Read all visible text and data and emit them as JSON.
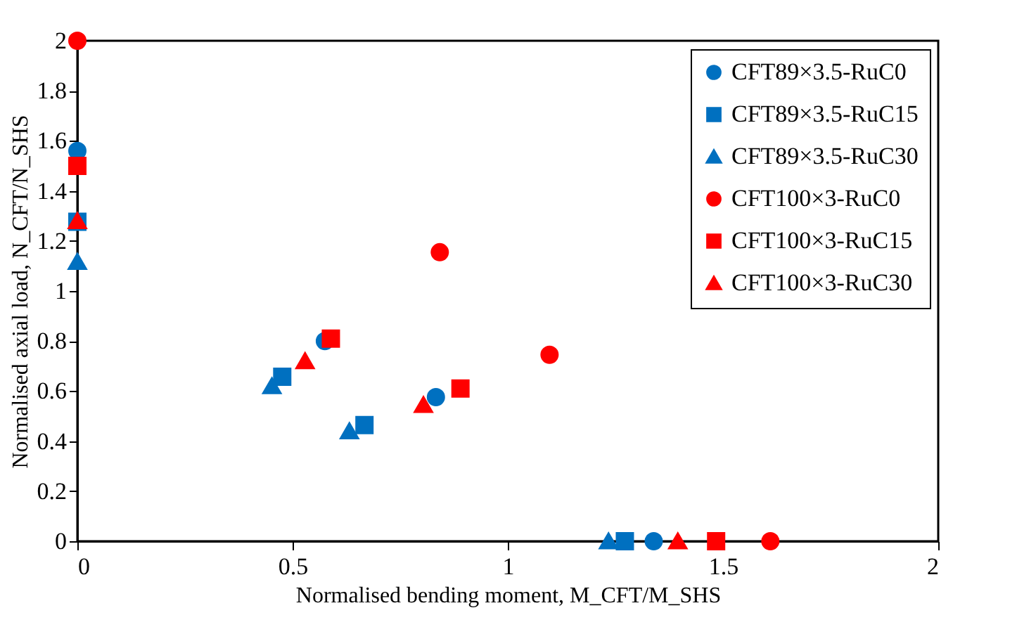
{
  "chart_data": {
    "type": "scatter",
    "xlabel": "Normalised bending moment, M_CFT/M_SHS",
    "ylabel": "Normalised axial load, N_CFT/N_SHS",
    "series": [
      {
        "name": "CFT89×3.5-RuC0",
        "color": "#0070c0",
        "marker": "circle",
        "x": [
          0,
          0.575,
          0.833,
          1.339
        ],
        "values": [
          1.56,
          0.8,
          0.576,
          0
        ]
      },
      {
        "name": "CFT89×3.5-RuC15",
        "color": "#0070c0",
        "marker": "square",
        "x": [
          0,
          0.476,
          0.667,
          1.272
        ],
        "values": [
          1.277,
          0.657,
          0.464,
          0
        ]
      },
      {
        "name": "CFT89×3.5-RuC30",
        "color": "#0070c0",
        "marker": "triangle",
        "x": [
          0,
          0.452,
          0.632,
          1.234
        ],
        "values": [
          1.117,
          0.62,
          0.44,
          0
        ]
      },
      {
        "name": "CFT100×3-RuC0",
        "color": "#ff0000",
        "marker": "circle",
        "x": [
          0,
          0.842,
          1.097,
          1.61
        ],
        "values": [
          2.0,
          1.155,
          0.745,
          0
        ]
      },
      {
        "name": "CFT100×3-RuC15",
        "color": "#ff0000",
        "marker": "square",
        "x": [
          0,
          0.589,
          0.89,
          1.484
        ],
        "values": [
          1.5,
          0.81,
          0.61,
          0
        ]
      },
      {
        "name": "CFT100×3-RuC30",
        "color": "#ff0000",
        "marker": "triangle",
        "x": [
          0,
          0.529,
          0.804,
          1.395
        ],
        "values": [
          1.28,
          0.72,
          0.545,
          0
        ]
      }
    ],
    "xlim": [
      0,
      2
    ],
    "xticks": [
      0,
      0.5,
      1,
      1.5,
      2
    ],
    "ylim": [
      0,
      2
    ],
    "yticks": [
      0,
      0.2,
      0.4,
      0.6,
      0.8,
      1,
      1.2,
      1.4,
      1.6,
      1.8,
      2
    ],
    "grid": false,
    "legend": "top right"
  }
}
